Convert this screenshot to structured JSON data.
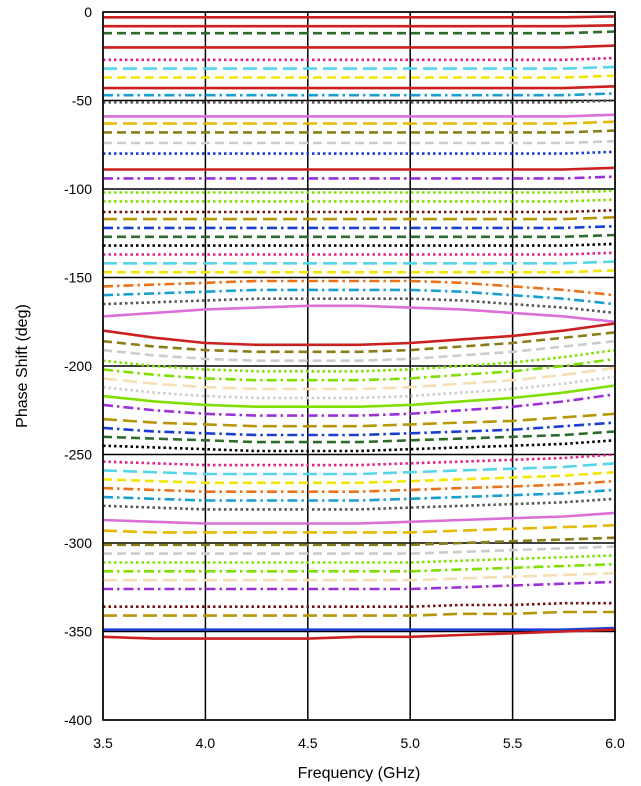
{
  "chart_data": {
    "type": "line",
    "title": "",
    "xlabel": "Frequency (GHz)",
    "ylabel": "Phase Shift (deg)",
    "xlim": [
      3.5,
      6.0
    ],
    "ylim": [
      -400,
      0
    ],
    "x_ticks": [
      3.5,
      4.0,
      4.5,
      5.0,
      5.5,
      6.0
    ],
    "x_tick_labels": [
      "3.5",
      "4.0",
      "4.5",
      "5.0",
      "5.5",
      "6.0"
    ],
    "y_ticks": [
      0,
      -50,
      -100,
      -150,
      -200,
      -250,
      -300,
      -350,
      -400
    ],
    "y_tick_labels": [
      "0",
      "-50",
      "-100",
      "-150",
      "-200",
      "-250",
      "-300",
      "-350",
      "-400"
    ],
    "grid": true,
    "legend": "none",
    "x": [
      3.5,
      3.75,
      4.0,
      4.25,
      4.5,
      4.75,
      5.0,
      5.25,
      5.5,
      5.75,
      6.0
    ],
    "series": [
      {
        "color": "#cc1f1f",
        "dash": "solid",
        "values": [
          -3,
          -3,
          -3,
          -3,
          -3,
          -3,
          -3,
          -3,
          -3,
          -3,
          -2.5
        ]
      },
      {
        "color": "#cc1f1f",
        "dash": "solid",
        "values": [
          -8,
          -8,
          -8,
          -8,
          -8,
          -8,
          -8,
          -8,
          -8,
          -8,
          -7.5
        ]
      },
      {
        "color": "#2e6b2e",
        "dash": "dash",
        "values": [
          -12,
          -12,
          -12,
          -12,
          -12,
          -12,
          -12,
          -12,
          -12,
          -12,
          -11
        ]
      },
      {
        "color": "#cc1f1f",
        "dash": "solid",
        "values": [
          -20,
          -20,
          -20,
          -20,
          -20,
          -20,
          -20,
          -20,
          -20,
          -20,
          -19
        ]
      },
      {
        "color": "#e0218a",
        "dash": "dot",
        "values": [
          -27,
          -27,
          -27,
          -27,
          -27,
          -27,
          -27,
          -27,
          -27,
          -27,
          -26
        ]
      },
      {
        "color": "#55d6e8",
        "dash": "longdash",
        "values": [
          -32,
          -32,
          -32,
          -32,
          -32,
          -32,
          -32,
          -32,
          -32,
          -32,
          -31
        ]
      },
      {
        "color": "#f2e600",
        "dash": "dash",
        "values": [
          -37,
          -37,
          -37,
          -37,
          -37,
          -37,
          -37,
          -37,
          -37,
          -37,
          -36
        ]
      },
      {
        "color": "#cc1f1f",
        "dash": "solid",
        "values": [
          -43,
          -43,
          -43,
          -43,
          -43,
          -43,
          -43,
          -43,
          -43,
          -43,
          -42
        ]
      },
      {
        "color": "#1a9ed0",
        "dash": "dashdot",
        "values": [
          -47,
          -47,
          -47,
          -47,
          -47,
          -47,
          -47,
          -47,
          -47,
          -47,
          -46
        ]
      },
      {
        "color": "#555555",
        "dash": "dot",
        "values": [
          -51,
          -51,
          -51,
          -51,
          -51,
          -51,
          -51,
          -51,
          -51,
          -51,
          -50
        ]
      },
      {
        "color": "#da70d6",
        "dash": "solid",
        "values": [
          -59,
          -59,
          -59,
          -59,
          -59,
          -59,
          -59,
          -59,
          -59,
          -59,
          -58
        ]
      },
      {
        "color": "#e6b800",
        "dash": "longdash",
        "values": [
          -63,
          -63,
          -63,
          -63,
          -63,
          -63,
          -63,
          -63,
          -63,
          -63,
          -62
        ]
      },
      {
        "color": "#8b7d1a",
        "dash": "dash",
        "values": [
          -68,
          -68,
          -68,
          -68,
          -68,
          -68,
          -68,
          -68,
          -68,
          -68,
          -67
        ]
      },
      {
        "color": "#cccccc",
        "dash": "dash",
        "values": [
          -74,
          -74,
          -74,
          -74,
          -74,
          -74,
          -74,
          -74,
          -74,
          -74,
          -73
        ]
      },
      {
        "color": "#1a3fd0",
        "dash": "dot",
        "values": [
          -80,
          -80,
          -80,
          -80,
          -80,
          -80,
          -80,
          -80,
          -80,
          -80,
          -79
        ]
      },
      {
        "color": "#cc1f1f",
        "dash": "solid",
        "values": [
          -89,
          -89,
          -89,
          -89,
          -89,
          -89,
          -89,
          -89,
          -89,
          -89,
          -88
        ]
      },
      {
        "color": "#9b30d9",
        "dash": "dashdot",
        "values": [
          -94,
          -94,
          -94,
          -94,
          -94,
          -94,
          -94,
          -94,
          -94,
          -94,
          -93
        ]
      },
      {
        "color": "#7fe000",
        "dash": "dot",
        "values": [
          -102,
          -102,
          -102,
          -102,
          -102,
          -102,
          -102,
          -102,
          -102,
          -102,
          -101
        ]
      },
      {
        "color": "#7fe000",
        "dash": "dot",
        "values": [
          -107,
          -107,
          -107,
          -107,
          -107,
          -107,
          -107,
          -107,
          -107,
          -107,
          -106
        ]
      },
      {
        "color": "#7a1010",
        "dash": "dot",
        "values": [
          -113,
          -113,
          -113,
          -113,
          -113,
          -113,
          -113,
          -113,
          -113,
          -113,
          -112
        ]
      },
      {
        "color": "#b8960a",
        "dash": "longdash",
        "values": [
          -117,
          -117,
          -117,
          -117,
          -117,
          -117,
          -117,
          -117,
          -117,
          -117,
          -116
        ]
      },
      {
        "color": "#1a3fd0",
        "dash": "dashdot",
        "values": [
          -122,
          -122,
          -122,
          -122,
          -122,
          -122,
          -122,
          -122,
          -122,
          -122,
          -121
        ]
      },
      {
        "color": "#2e6b2e",
        "dash": "dash",
        "values": [
          -127,
          -127,
          -127,
          -127,
          -127,
          -127,
          -127,
          -127,
          -127,
          -127,
          -126
        ]
      },
      {
        "color": "#000000",
        "dash": "dot",
        "values": [
          -132,
          -132,
          -132,
          -132,
          -132,
          -132,
          -132,
          -132,
          -132,
          -132,
          -131
        ]
      },
      {
        "color": "#e0218a",
        "dash": "dot",
        "values": [
          -137,
          -137,
          -137,
          -137,
          -137,
          -137,
          -137,
          -137,
          -137,
          -137,
          -136
        ]
      },
      {
        "color": "#55d6e8",
        "dash": "longdash",
        "values": [
          -142,
          -142,
          -142,
          -142,
          -142,
          -142,
          -142,
          -142,
          -142,
          -142,
          -141
        ]
      },
      {
        "color": "#f2e600",
        "dash": "dash",
        "values": [
          -147,
          -147,
          -147,
          -147,
          -147,
          -147,
          -147,
          -147,
          -147,
          -147,
          -146
        ]
      },
      {
        "color": "#e8731a",
        "dash": "dashdot",
        "values": [
          -155,
          -154,
          -153,
          -152,
          -152,
          -152,
          -152,
          -153,
          -155,
          -157,
          -160
        ]
      },
      {
        "color": "#1a9ed0",
        "dash": "dashdot",
        "values": [
          -160,
          -159,
          -158,
          -157,
          -157,
          -157,
          -157,
          -158,
          -160,
          -162,
          -165
        ]
      },
      {
        "color": "#555555",
        "dash": "dot",
        "values": [
          -165,
          -164,
          -163,
          -162,
          -162,
          -162,
          -162,
          -163,
          -165,
          -167,
          -170
        ]
      },
      {
        "color": "#da70d6",
        "dash": "solid",
        "values": [
          -172,
          -170,
          -168,
          -167,
          -166,
          -166,
          -167,
          -168,
          -170,
          -172,
          -175
        ]
      },
      {
        "color": "#cc1f1f",
        "dash": "solid",
        "values": [
          -180,
          -184,
          -187,
          -188,
          -188,
          -188,
          -187,
          -185,
          -183,
          -180,
          -176
        ]
      },
      {
        "color": "#8b7d1a",
        "dash": "dash",
        "values": [
          -186,
          -189,
          -191,
          -192,
          -192,
          -192,
          -191,
          -189,
          -187,
          -184,
          -181
        ]
      },
      {
        "color": "#cccccc",
        "dash": "dash",
        "values": [
          -191,
          -194,
          -196,
          -197,
          -197,
          -197,
          -196,
          -194,
          -192,
          -189,
          -186
        ]
      },
      {
        "color": "#7fe000",
        "dash": "dot",
        "values": [
          -197,
          -200,
          -202,
          -203,
          -203,
          -203,
          -202,
          -200,
          -198,
          -195,
          -191
        ]
      },
      {
        "color": "#7fe000",
        "dash": "dashdot",
        "values": [
          -202,
          -205,
          -207,
          -208,
          -208,
          -208,
          -207,
          -205,
          -203,
          -200,
          -196
        ]
      },
      {
        "color": "#f5deb3",
        "dash": "longdash",
        "values": [
          -207,
          -210,
          -212,
          -213,
          -213,
          -213,
          -212,
          -210,
          -208,
          -205,
          -201
        ]
      },
      {
        "color": "#cccccc",
        "dash": "dot",
        "values": [
          -212,
          -215,
          -217,
          -218,
          -218,
          -218,
          -217,
          -215,
          -213,
          -210,
          -206
        ]
      },
      {
        "color": "#7fe000",
        "dash": "solid",
        "values": [
          -217,
          -220,
          -222,
          -223,
          -223,
          -223,
          -222,
          -220,
          -218,
          -215,
          -211
        ]
      },
      {
        "color": "#9b30d9",
        "dash": "dashdot",
        "values": [
          -222,
          -225,
          -227,
          -228,
          -228,
          -228,
          -227,
          -225,
          -223,
          -220,
          -216
        ]
      },
      {
        "color": "#b8960a",
        "dash": "longdash",
        "values": [
          -230,
          -232,
          -233,
          -234,
          -234,
          -234,
          -233,
          -232,
          -231,
          -229,
          -227
        ]
      },
      {
        "color": "#1a3fd0",
        "dash": "dashdot",
        "values": [
          -235,
          -237,
          -238,
          -239,
          -239,
          -239,
          -238,
          -237,
          -236,
          -234,
          -232
        ]
      },
      {
        "color": "#2e6b2e",
        "dash": "dash",
        "values": [
          -240,
          -241,
          -242,
          -243,
          -243,
          -243,
          -242,
          -241,
          -240,
          -239,
          -237
        ]
      },
      {
        "color": "#000000",
        "dash": "dot",
        "values": [
          -245,
          -246,
          -247,
          -248,
          -248,
          -248,
          -247,
          -246,
          -245,
          -244,
          -242
        ]
      },
      {
        "color": "#e0218a",
        "dash": "dot",
        "values": [
          -254,
          -255,
          -256,
          -256,
          -256,
          -256,
          -255,
          -254,
          -253,
          -252,
          -250
        ]
      },
      {
        "color": "#55d6e8",
        "dash": "longdash",
        "values": [
          -259,
          -260,
          -261,
          -261,
          -261,
          -261,
          -260,
          -259,
          -258,
          -257,
          -255
        ]
      },
      {
        "color": "#f2e600",
        "dash": "dash",
        "values": [
          -264,
          -265,
          -266,
          -266,
          -266,
          -266,
          -265,
          -264,
          -263,
          -262,
          -260
        ]
      },
      {
        "color": "#e8731a",
        "dash": "dashdot",
        "values": [
          -269,
          -270,
          -271,
          -271,
          -271,
          -271,
          -270,
          -269,
          -268,
          -267,
          -265
        ]
      },
      {
        "color": "#1a9ed0",
        "dash": "dashdot",
        "values": [
          -274,
          -275,
          -276,
          -276,
          -276,
          -276,
          -275,
          -274,
          -273,
          -272,
          -270
        ]
      },
      {
        "color": "#555555",
        "dash": "dot",
        "values": [
          -279,
          -280,
          -281,
          -281,
          -281,
          -281,
          -280,
          -279,
          -278,
          -277,
          -275
        ]
      },
      {
        "color": "#da70d6",
        "dash": "solid",
        "values": [
          -287,
          -288,
          -289,
          -289,
          -289,
          -289,
          -288,
          -287,
          -286,
          -285,
          -283
        ]
      },
      {
        "color": "#e6b800",
        "dash": "longdash",
        "values": [
          -293,
          -294,
          -294,
          -294,
          -294,
          -294,
          -294,
          -293,
          -292,
          -291,
          -290
        ]
      },
      {
        "color": "#8b7d1a",
        "dash": "dash",
        "values": [
          -301,
          -301,
          -301,
          -301,
          -301,
          -301,
          -301,
          -300,
          -299,
          -298,
          -297
        ]
      },
      {
        "color": "#cccccc",
        "dash": "dash",
        "values": [
          -306,
          -306,
          -306,
          -306,
          -306,
          -306,
          -306,
          -305,
          -304,
          -303,
          -302
        ]
      },
      {
        "color": "#7fe000",
        "dash": "dot",
        "values": [
          -311,
          -311,
          -311,
          -311,
          -311,
          -311,
          -311,
          -310,
          -309,
          -308,
          -307
        ]
      },
      {
        "color": "#7fe000",
        "dash": "dashdot",
        "values": [
          -316,
          -316,
          -316,
          -316,
          -316,
          -316,
          -316,
          -315,
          -314,
          -313,
          -312
        ]
      },
      {
        "color": "#f5deb3",
        "dash": "longdash",
        "values": [
          -321,
          -321,
          -321,
          -321,
          -321,
          -321,
          -321,
          -320,
          -319,
          -318,
          -317
        ]
      },
      {
        "color": "#9b30d9",
        "dash": "dashdot",
        "values": [
          -326,
          -326,
          -326,
          -326,
          -326,
          -326,
          -326,
          -325,
          -324,
          -323,
          -322
        ]
      },
      {
        "color": "#7a1010",
        "dash": "dot",
        "values": [
          -336,
          -336,
          -336,
          -336,
          -336,
          -336,
          -336,
          -335,
          -335,
          -334,
          -334
        ]
      },
      {
        "color": "#b8960a",
        "dash": "longdash",
        "values": [
          -341,
          -341,
          -341,
          -341,
          -341,
          -341,
          -341,
          -340,
          -340,
          -339,
          -339
        ]
      },
      {
        "color": "#1a3fd0",
        "dash": "solid",
        "values": [
          -349,
          -349,
          -349,
          -349,
          -349,
          -349,
          -349,
          -349,
          -349,
          -349,
          -348
        ]
      },
      {
        "color": "#cc1f1f",
        "dash": "solid",
        "values": [
          -353,
          -354,
          -354,
          -354,
          -354,
          -353,
          -353,
          -352,
          -351,
          -350,
          -349
        ]
      }
    ]
  }
}
